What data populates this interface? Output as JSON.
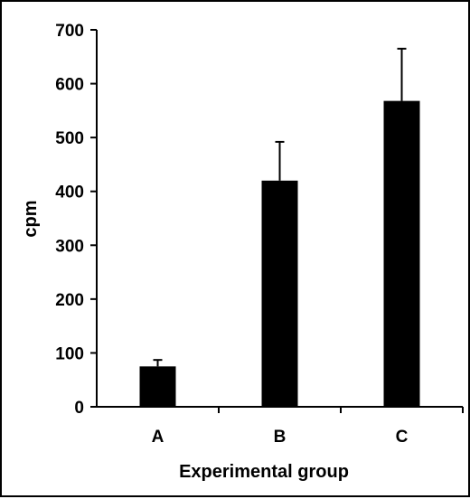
{
  "chart_data": {
    "type": "bar",
    "categories": [
      "A",
      "B",
      "C"
    ],
    "values": [
      75,
      420,
      568
    ],
    "error_upper": [
      87,
      492,
      665
    ],
    "xlabel": "Experimental group",
    "ylabel": "cpm",
    "ylim": [
      0,
      700
    ],
    "yticks": [
      "0",
      "100",
      "200",
      "300",
      "400",
      "500",
      "600",
      "700"
    ],
    "grid": false,
    "bar_color": "#000000"
  }
}
